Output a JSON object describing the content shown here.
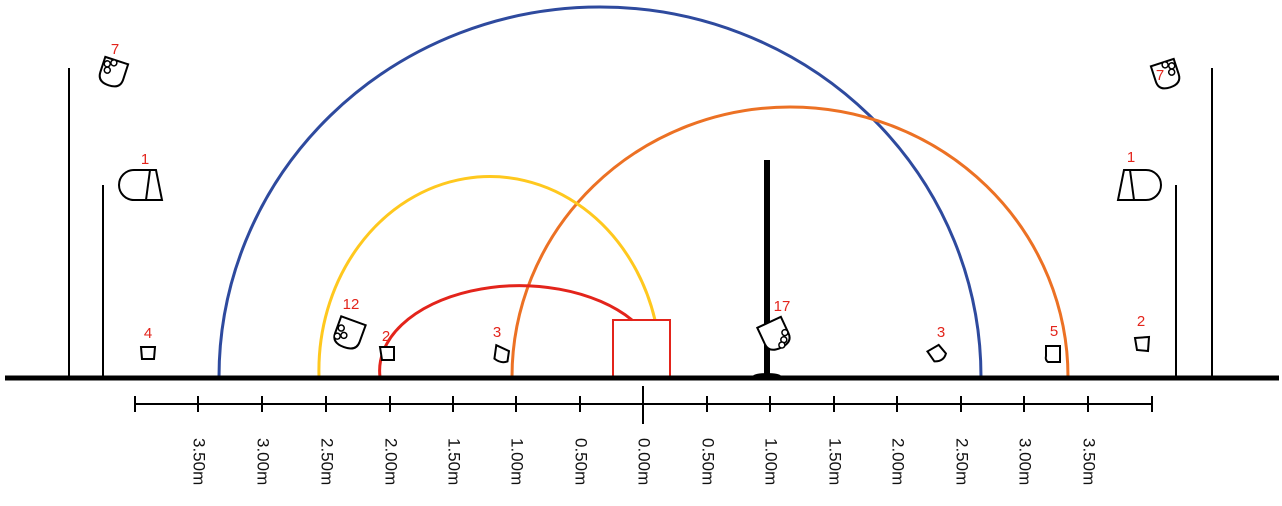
{
  "colors": {
    "ground": "#000000",
    "blue_arc": "#2e4a9e",
    "orange_arc": "#ec7124",
    "yellow_arc": "#ffc81e",
    "red_arc": "#e3241b",
    "red_box": "#e3241b",
    "number_labels": "#e3241b"
  },
  "scale": {
    "labels": [
      "3.50m",
      "3.00m",
      "2.50m",
      "2.00m",
      "1.50m",
      "1.00m",
      "0.50m",
      "0.00m",
      "0.50m",
      "1.00m",
      "1.50m",
      "2.00m",
      "2.50m",
      "3.00m",
      "3.50m"
    ]
  },
  "fixtures": [
    {
      "id": "left-top-lamp",
      "label": "7",
      "icon": "multi-head-lamp-icon"
    },
    {
      "id": "left-mid-lamp",
      "label": "1",
      "icon": "floodlight-icon"
    },
    {
      "id": "left-floor-lamp",
      "label": "4",
      "icon": "floor-light-icon"
    },
    {
      "id": "lamp-12",
      "label": "12",
      "icon": "multi-head-lamp-icon"
    },
    {
      "id": "lamp-2-left",
      "label": "2",
      "icon": "floor-light-icon"
    },
    {
      "id": "lamp-3-left",
      "label": "3",
      "icon": "floor-light-icon"
    },
    {
      "id": "lamp-17",
      "label": "17",
      "icon": "multi-head-lamp-icon"
    },
    {
      "id": "lamp-3-right",
      "label": "3",
      "icon": "floor-light-icon"
    },
    {
      "id": "lamp-5",
      "label": "5",
      "icon": "floor-light-icon"
    },
    {
      "id": "right-floor-lamp",
      "label": "2",
      "icon": "floor-light-icon"
    },
    {
      "id": "right-mid-lamp",
      "label": "1",
      "icon": "floodlight-icon"
    },
    {
      "id": "right-top-lamp",
      "label": "7",
      "icon": "multi-head-lamp-icon"
    }
  ]
}
